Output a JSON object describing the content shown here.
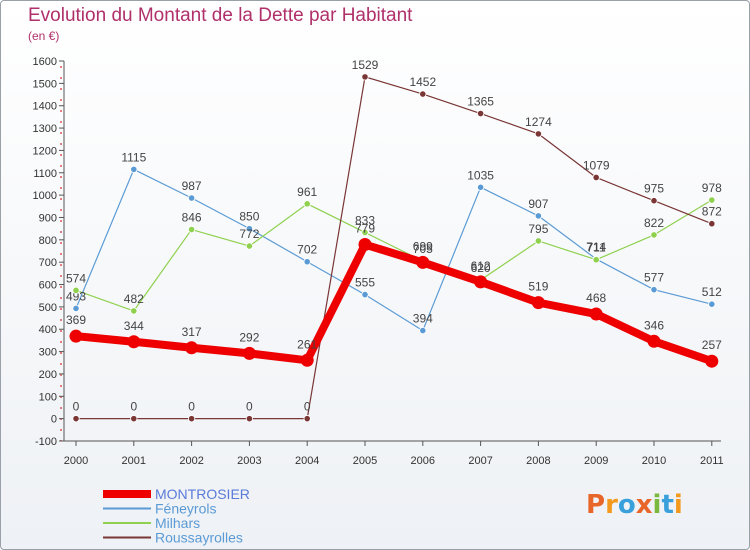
{
  "title": "Evolution du Montant de la Dette par Habitant",
  "subtitle": "(en €)",
  "logo": {
    "text": "Proxiti",
    "colors": [
      "#e8662a",
      "#f39a1e",
      "#3aa0dc",
      "#e8662a",
      "#7ab83e",
      "#3aa0dc",
      "#f39a1e"
    ]
  },
  "chart_data": {
    "type": "line",
    "title": "Evolution du Montant de la Dette par Habitant",
    "subtitle": "(en €)",
    "x": [
      "2000",
      "2001",
      "2002",
      "2003",
      "2004",
      "2005",
      "2006",
      "2007",
      "2008",
      "2009",
      "2010",
      "2011"
    ],
    "ylim": [
      -100,
      1600
    ],
    "yticks": [
      -100,
      0,
      100,
      200,
      300,
      400,
      500,
      600,
      700,
      800,
      900,
      1000,
      1100,
      1200,
      1300,
      1400,
      1500,
      1600
    ],
    "grid": false,
    "legend_position": "bottom-left",
    "series": [
      {
        "name": "Féneyrols",
        "color": "#5b9bd5",
        "values": [
          493,
          1115,
          987,
          850,
          702,
          555,
          394,
          1035,
          907,
          714,
          577,
          512
        ]
      },
      {
        "name": "Milhars",
        "color": "#8fd14f",
        "values": [
          574,
          482,
          846,
          772,
          961,
          833,
          705,
          620,
          795,
          711,
          822,
          978
        ]
      },
      {
        "name": "Roussayrolles",
        "color": "#7a3535",
        "values": [
          0,
          0,
          0,
          0,
          0,
          1529,
          1452,
          1365,
          1274,
          1079,
          975,
          872
        ]
      },
      {
        "name": "MONTROSIER",
        "color": "#ee0000",
        "values": [
          369,
          344,
          317,
          292,
          261,
          779,
          699,
          612,
          519,
          468,
          346,
          257
        ]
      }
    ]
  }
}
